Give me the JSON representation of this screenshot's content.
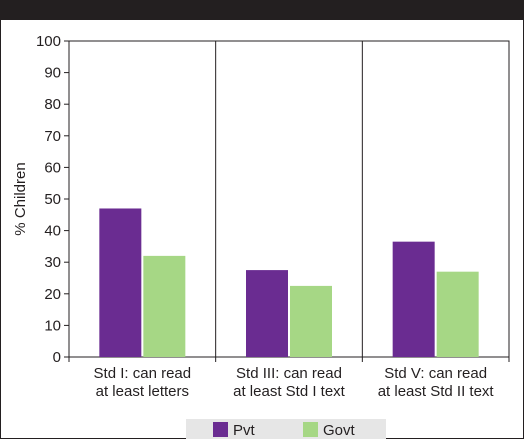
{
  "chart_data": {
    "type": "bar",
    "title": "",
    "xlabel": "",
    "ylabel": "% Children",
    "ylim": [
      0,
      100
    ],
    "yticks": [
      0,
      10,
      20,
      30,
      40,
      50,
      60,
      70,
      80,
      90,
      100
    ],
    "grid": "vertical category separators only",
    "legend": "bottom",
    "categories": [
      [
        "Std I: can read",
        "at least letters"
      ],
      [
        "Std III: can read",
        "at least Std I text"
      ],
      [
        "Std V: can read",
        "at least Std II text"
      ]
    ],
    "series": [
      {
        "name": "Pvt",
        "color": "#6a2c91",
        "values": [
          47,
          27.5,
          36.5
        ]
      },
      {
        "name": "Govt",
        "color": "#a6d785",
        "values": [
          32,
          22.5,
          27
        ]
      }
    ]
  }
}
